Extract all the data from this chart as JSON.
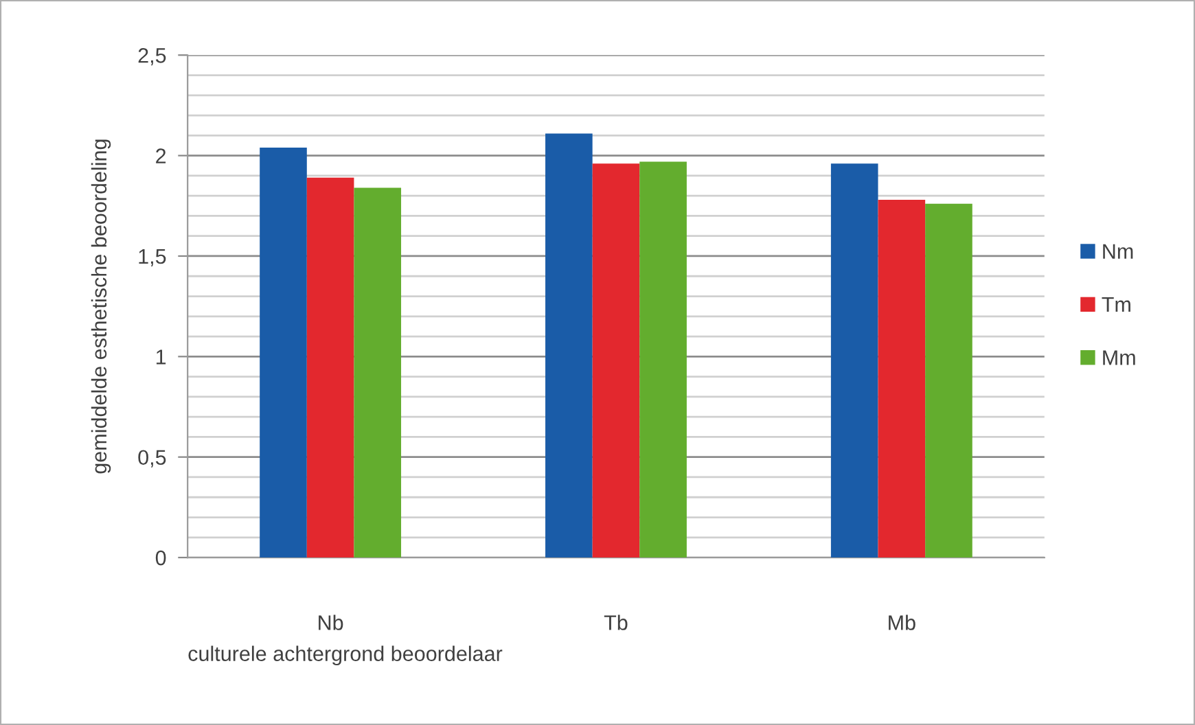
{
  "chart_data": {
    "type": "bar",
    "categories": [
      "Nb",
      "Tb",
      "Mb"
    ],
    "series": [
      {
        "name": "Nm",
        "color": "#1a5ca8",
        "values": [
          2.04,
          2.11,
          1.96
        ]
      },
      {
        "name": "Tm",
        "color": "#e3282e",
        "values": [
          1.89,
          1.96,
          1.78
        ]
      },
      {
        "name": "Mm",
        "color": "#63ad2e",
        "values": [
          1.84,
          1.97,
          1.76
        ]
      }
    ],
    "xlabel": "culturele achtergrond beoordelaar",
    "ylabel": "gemiddelde esthetische beoordeling",
    "ylim": [
      0,
      2.5
    ],
    "yticks": [
      0,
      {
        "value": 0.1,
        "label": null
      },
      {
        "value": 0.2,
        "label": null
      },
      {
        "value": 0.3,
        "label": null
      },
      {
        "value": 0.4,
        "label": null
      },
      {
        "value": 0.5,
        "label": "0,5"
      },
      {
        "value": 0.6,
        "label": null
      },
      {
        "value": 0.7,
        "label": null
      },
      {
        "value": 0.8,
        "label": null
      },
      {
        "value": 0.9,
        "label": null
      },
      1,
      {
        "value": 1.1,
        "label": null
      },
      {
        "value": 1.2,
        "label": null
      },
      {
        "value": 1.3,
        "label": null
      },
      {
        "value": 1.4,
        "label": null
      },
      {
        "value": 1.5,
        "label": "1,5"
      },
      {
        "value": 1.6,
        "label": null
      },
      {
        "value": 1.7,
        "label": null
      },
      {
        "value": 1.8,
        "label": null
      },
      {
        "value": 1.9,
        "label": null
      },
      2,
      {
        "value": 2.1,
        "label": null
      },
      {
        "value": 2.2,
        "label": null
      },
      {
        "value": 2.3,
        "label": null
      },
      {
        "value": 2.4,
        "label": null
      },
      {
        "value": 2.5,
        "label": "2,5"
      }
    ],
    "grid": "y",
    "legend": "right"
  }
}
